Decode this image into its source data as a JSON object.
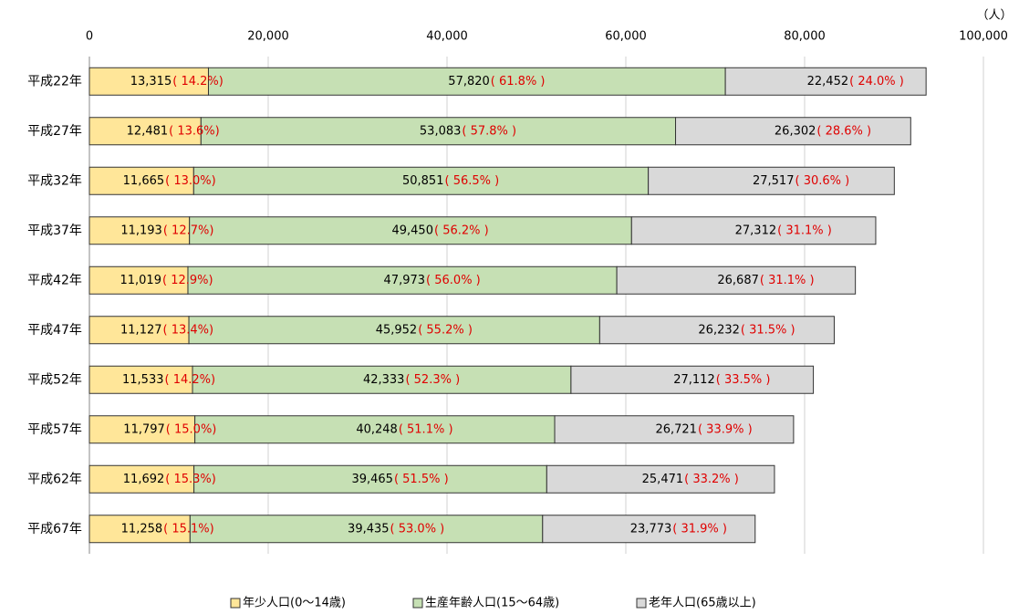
{
  "chart_data": {
    "type": "stacked_barh",
    "unit_label": "（人）",
    "categories": [
      "平成22年",
      "平成27年",
      "平成32年",
      "平成37年",
      "平成42年",
      "平成47年",
      "平成52年",
      "平成57年",
      "平成62年",
      "平成67年"
    ],
    "series": [
      {
        "name": "年少人口(0～14歳)",
        "color": "#ffe699",
        "values": [
          13315,
          12481,
          11665,
          11193,
          11019,
          11127,
          11533,
          11797,
          11692,
          11258
        ],
        "value_labels": [
          "13,315",
          "12,481",
          "11,665",
          "11,193",
          "11,019",
          "11,127",
          "11,533",
          "11,797",
          "11,692",
          "11,258"
        ],
        "percent_labels": [
          "( 14.2%)",
          "( 13.6%)",
          "( 13.0%)",
          "( 12.7%)",
          "( 12.9%)",
          "( 13.4%)",
          "( 14.2%)",
          "( 15.0%)",
          "( 15.3%)",
          "( 15.1%)"
        ]
      },
      {
        "name": "生産年齢人口(15～64歳)",
        "color": "#c6e0b4",
        "values": [
          57820,
          53083,
          50851,
          49450,
          47973,
          45952,
          42333,
          40248,
          39465,
          39435
        ],
        "value_labels": [
          "57,820",
          "53,083",
          "50,851",
          "49,450",
          "47,973",
          "45,952",
          "42,333",
          "40,248",
          "39,465",
          "39,435"
        ],
        "percent_labels": [
          "( 61.8% )",
          "( 57.8% )",
          "( 56.5% )",
          "( 56.2% )",
          "( 56.0% )",
          "( 55.2% )",
          "( 52.3% )",
          "( 51.1% )",
          "( 51.5% )",
          "( 53.0% )"
        ]
      },
      {
        "name": "老年人口(65歳以上)",
        "color": "#d9d9d9",
        "values": [
          22452,
          26302,
          27517,
          27312,
          26687,
          26232,
          27112,
          26721,
          25471,
          23773
        ],
        "value_labels": [
          "22,452",
          "26,302",
          "27,517",
          "27,312",
          "26,687",
          "26,232",
          "27,112",
          "26,721",
          "25,471",
          "23,773"
        ],
        "percent_labels": [
          "( 24.0% )",
          "( 28.6% )",
          "( 30.6% )",
          "( 31.1% )",
          "( 31.1% )",
          "( 31.5% )",
          "( 33.5% )",
          "( 33.9% )",
          "( 33.2% )",
          "( 31.9% )"
        ]
      }
    ],
    "xlim": [
      0,
      100000
    ],
    "xticks": [
      0,
      {
        "value": 20000,
        "label": "20,000"
      },
      {
        "value": 40000,
        "label": "40,000"
      },
      {
        "value": 60000,
        "label": "60,000"
      },
      {
        "value": 80000,
        "label": "80,000"
      },
      {
        "value": 100000,
        "label": "100,000"
      }
    ],
    "grid": true,
    "legend": "bottom"
  }
}
